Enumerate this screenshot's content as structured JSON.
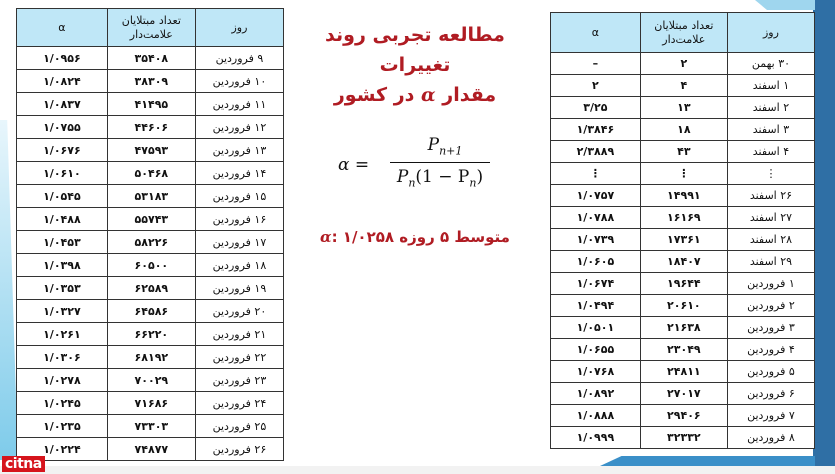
{
  "title": {
    "line1": "مطالعه تجربی روند تغییرات",
    "line2_before": "مقدار",
    "line2_symbol": "α",
    "line2_after": "در کشور"
  },
  "formula": {
    "lhs": "α =",
    "numerator": "P",
    "numerator_sub": "n+1",
    "denominator": "P",
    "denominator_sub": "n",
    "denominator_rest": "(1 − P",
    "denominator_sub2": "n",
    "denominator_close": ")"
  },
  "average": {
    "prefix": "متوسط ۵ روزه",
    "symbol": "α",
    "value": ": ۱/۰۲۵۸"
  },
  "columns": {
    "alpha": "α",
    "count_line1": "تعداد مبتلایان",
    "count_line2": "علامت‌دار",
    "day": "روز"
  },
  "left_table": [
    [
      "۹ فروردین",
      "۳۵۴۰۸",
      "۱/۰۹۵۶"
    ],
    [
      "۱۰ فروردین",
      "۳۸۳۰۹",
      "۱/۰۸۲۴"
    ],
    [
      "۱۱ فروردین",
      "۴۱۴۹۵",
      "۱/۰۸۳۷"
    ],
    [
      "۱۲ فروردین",
      "۴۴۶۰۶",
      "۱/۰۷۵۵"
    ],
    [
      "۱۳ فروردین",
      "۴۷۵۹۳",
      "۱/۰۶۷۶"
    ],
    [
      "۱۴ فروردین",
      "۵۰۴۶۸",
      "۱/۰۶۱۰"
    ],
    [
      "۱۵ فروردین",
      "۵۳۱۸۳",
      "۱/۰۵۴۵"
    ],
    [
      "۱۶ فروردین",
      "۵۵۷۴۳",
      "۱/۰۴۸۸"
    ],
    [
      "۱۷ فروردین",
      "۵۸۲۲۶",
      "۱/۰۴۵۳"
    ],
    [
      "۱۸ فروردین",
      "۶۰۵۰۰",
      "۱/۰۳۹۸"
    ],
    [
      "۱۹ فروردین",
      "۶۲۵۸۹",
      "۱/۰۳۵۳"
    ],
    [
      "۲۰ فروردین",
      "۶۴۵۸۶",
      "۱/۰۳۲۷"
    ],
    [
      "۲۱ فروردین",
      "۶۶۲۲۰",
      "۱/۰۲۶۱"
    ],
    [
      "۲۲ فروردین",
      "۶۸۱۹۲",
      "۱/۰۳۰۶"
    ],
    [
      "۲۳ فروردین",
      "۷۰۰۲۹",
      "۱/۰۲۷۸"
    ],
    [
      "۲۴ فروردین",
      "۷۱۶۸۶",
      "۱/۰۲۴۵"
    ],
    [
      "۲۵ فروردین",
      "۷۳۳۰۳",
      "۱/۰۲۳۵"
    ],
    [
      "۲۶ فروردین",
      "۷۴۸۷۷",
      "۱/۰۲۲۴"
    ]
  ],
  "right_table": [
    [
      "۳۰ بهمن",
      "۲",
      "–"
    ],
    [
      "۱ اسفند",
      "۴",
      "۲"
    ],
    [
      "۲ اسفند",
      "۱۳",
      "۳/۲۵"
    ],
    [
      "۳ اسفند",
      "۱۸",
      "۱/۳۸۴۶"
    ],
    [
      "۴ اسفند",
      "۴۳",
      "۲/۳۸۸۹"
    ],
    [
      "⋮",
      "⋮",
      "⋮"
    ],
    [
      "۲۶ اسفند",
      "۱۴۹۹۱",
      "۱/۰۷۵۷"
    ],
    [
      "۲۷ اسفند",
      "۱۶۱۶۹",
      "۱/۰۷۸۸"
    ],
    [
      "۲۸ اسفند",
      "۱۷۳۶۱",
      "۱/۰۷۳۹"
    ],
    [
      "۲۹ اسفند",
      "۱۸۴۰۷",
      "۱/۰۶۰۵"
    ],
    [
      "۱ فروردین",
      "۱۹۶۴۴",
      "۱/۰۶۷۴"
    ],
    [
      "۲ فروردین",
      "۲۰۶۱۰",
      "۱/۰۴۹۴"
    ],
    [
      "۳ فروردین",
      "۲۱۶۳۸",
      "۱/۰۵۰۱"
    ],
    [
      "۴ فروردین",
      "۲۳۰۴۹",
      "۱/۰۶۵۵"
    ],
    [
      "۵ فروردین",
      "۲۴۸۱۱",
      "۱/۰۷۶۸"
    ],
    [
      "۶ فروردین",
      "۲۷۰۱۷",
      "۱/۰۸۹۲"
    ],
    [
      "۷ فروردین",
      "۲۹۴۰۶",
      "۱/۰۸۸۸"
    ],
    [
      "۸ فروردین",
      "۳۲۳۳۲",
      "۱/۰۹۹۹"
    ]
  ],
  "logo": "citna",
  "colors": {
    "header_bg": "#bfe7f7",
    "title_red": "#b01c23",
    "accent_blue": "#2f6fa5"
  }
}
